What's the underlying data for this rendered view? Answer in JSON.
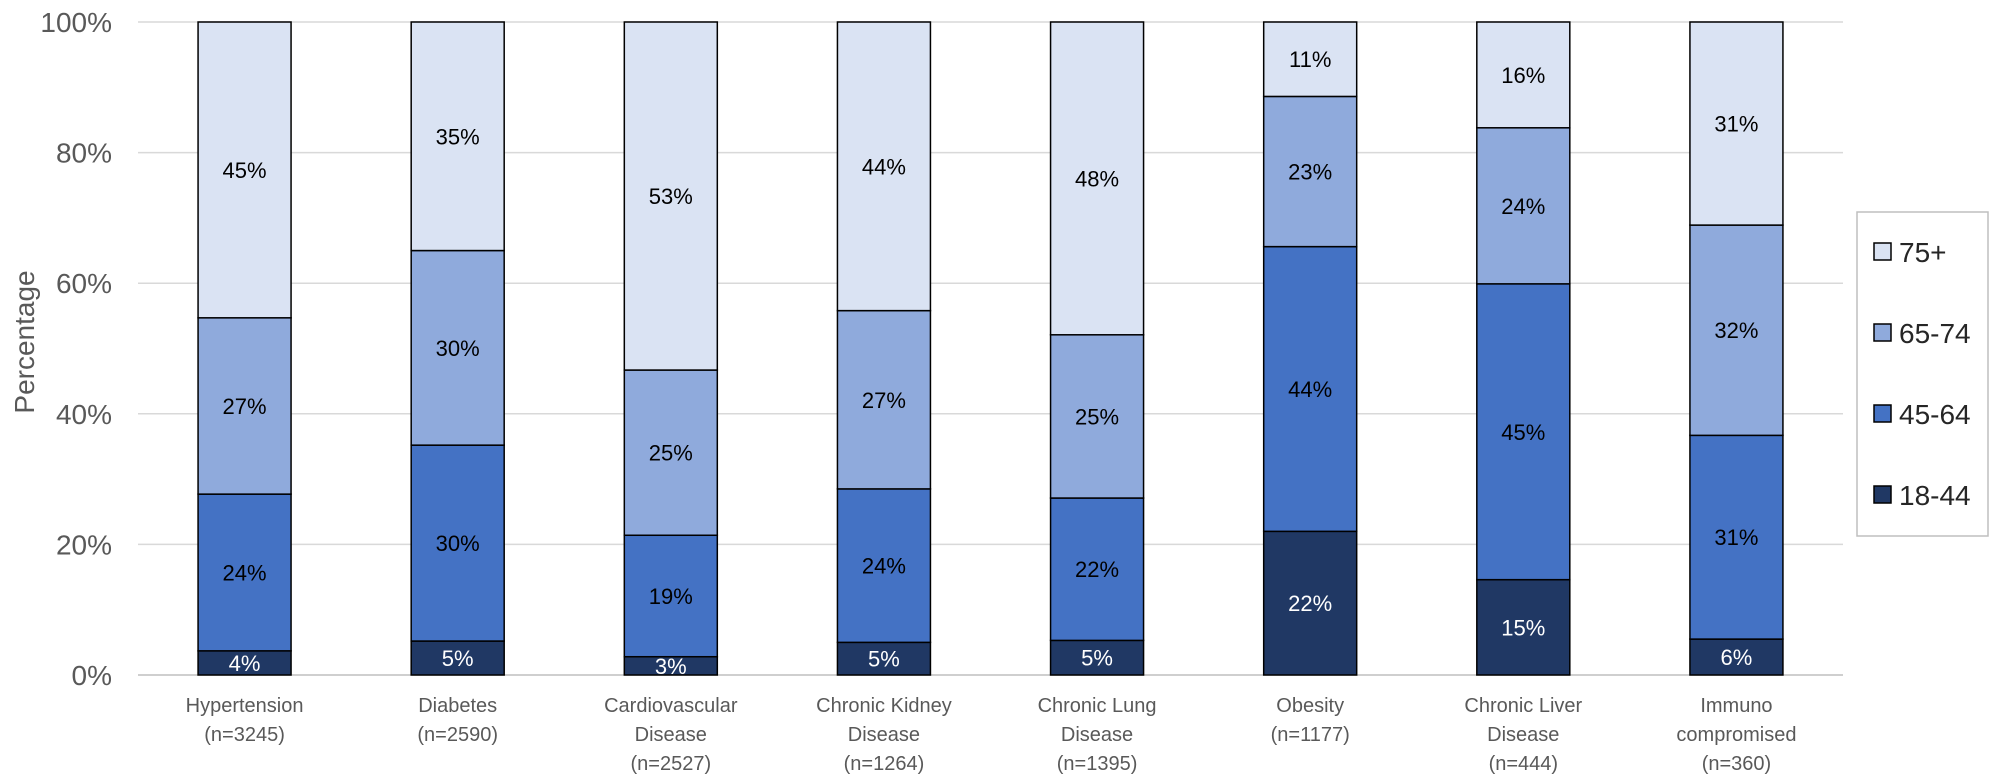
{
  "chart_data": {
    "type": "bar",
    "stacked": true,
    "percent_stacked": true,
    "ylabel": "Percentage",
    "ylim": [
      0,
      100
    ],
    "yticks": [
      "0%",
      "20%",
      "40%",
      "60%",
      "80%",
      "100%"
    ],
    "grid": true,
    "legend_position": "right",
    "categories": [
      [
        "Hypertension",
        "(n=3245)"
      ],
      [
        "Diabetes",
        "(n=2590)"
      ],
      [
        "Cardiovascular",
        "Disease",
        "(n=2527)"
      ],
      [
        "Chronic Kidney",
        "Disease",
        "(n=1264)"
      ],
      [
        "Chronic Lung",
        "Disease",
        "(n=1395)"
      ],
      [
        "Obesity",
        "(n=1177)"
      ],
      [
        "Chronic Liver",
        "Disease",
        "(n=444)"
      ],
      [
        "Immuno",
        "compromised",
        "(n=360)"
      ]
    ],
    "series": [
      {
        "name": "18-44",
        "color": "#203864",
        "text_color": "#ffffff",
        "values": [
          3.7,
          5.2,
          2.8,
          5.0,
          5.3,
          22.0,
          14.6,
          5.5
        ],
        "labels": [
          "4%",
          "5%",
          "3%",
          "5%",
          "5%",
          "22%",
          "15%",
          "6%"
        ]
      },
      {
        "name": "45-64",
        "color": "#4472c4",
        "text_color": "#000000",
        "values": [
          24.0,
          30.0,
          18.6,
          23.5,
          21.8,
          43.6,
          45.3,
          31.2
        ],
        "labels": [
          "24%",
          "30%",
          "19%",
          "24%",
          "22%",
          "44%",
          "45%",
          "31%"
        ]
      },
      {
        "name": "65-74",
        "color": "#8faadc",
        "text_color": "#000000",
        "values": [
          27.0,
          29.8,
          25.3,
          27.3,
          25.0,
          23.0,
          23.9,
          32.2
        ],
        "labels": [
          "27%",
          "30%",
          "25%",
          "27%",
          "25%",
          "23%",
          "24%",
          "32%"
        ]
      },
      {
        "name": "75+",
        "color": "#dae3f3",
        "text_color": "#000000",
        "values": [
          45.3,
          35.0,
          53.3,
          44.2,
          47.9,
          11.4,
          16.2,
          31.1
        ],
        "labels": [
          "45%",
          "35%",
          "53%",
          "44%",
          "48%",
          "11%",
          "16%",
          "31%"
        ]
      }
    ],
    "legend_order": [
      "75+",
      "65-74",
      "45-64",
      "18-44"
    ]
  }
}
